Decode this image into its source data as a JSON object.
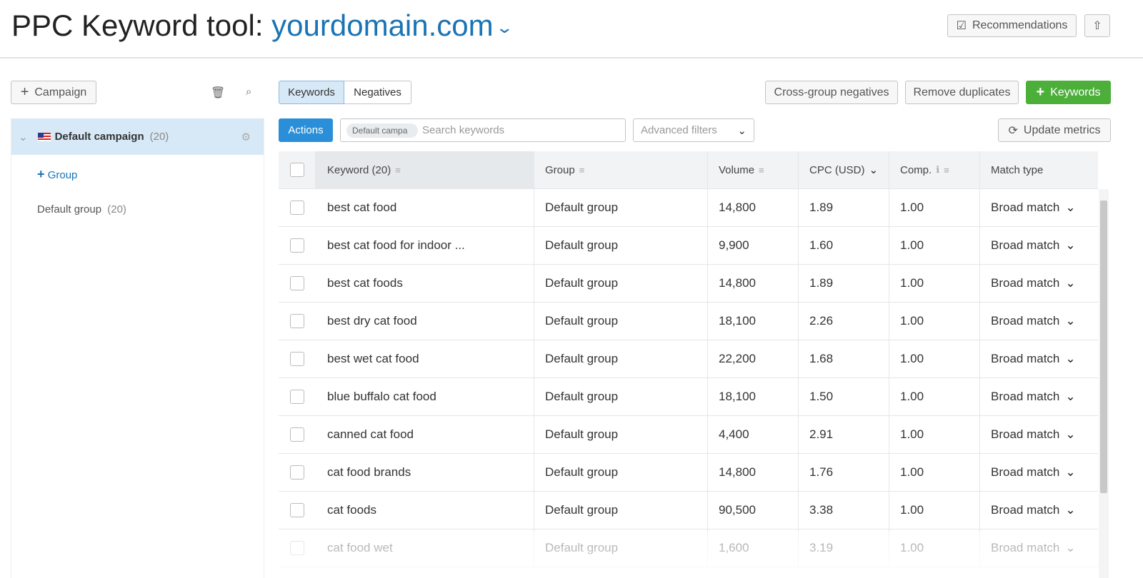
{
  "header": {
    "title_prefix": "PPC Keyword tool: ",
    "domain": "yourdomain.com",
    "recommendations": "Recommendations"
  },
  "sidebar": {
    "add_campaign": "Campaign",
    "campaign": {
      "name": "Default campaign",
      "count": "(20)"
    },
    "add_group": "Group",
    "groups": [
      {
        "name": "Default group",
        "count": "(20)"
      }
    ]
  },
  "tabs": [
    {
      "label": "Keywords",
      "active": true
    },
    {
      "label": "Negatives",
      "active": false
    }
  ],
  "toolbar": {
    "cross_group": "Cross-group negatives",
    "remove_duplicates": "Remove duplicates",
    "add_keywords": "Keywords",
    "actions": "Actions",
    "search_chip": "Default campa",
    "search_placeholder": "Search keywords",
    "advanced_filters": "Advanced filters",
    "update_metrics": "Update metrics"
  },
  "colors": {
    "accent": "#1a73b5",
    "green": "#4caf3a",
    "actions": "#2a8fd8"
  },
  "table": {
    "columns": [
      "Keyword (20)",
      "Group",
      "Volume",
      "CPC (USD)",
      "Comp.",
      "Match type"
    ],
    "rows": [
      [
        "best cat food",
        "Default group",
        "14,800",
        "1.89",
        "1.00",
        "Broad match"
      ],
      [
        "best cat food for indoor ...",
        "Default group",
        "9,900",
        "1.60",
        "1.00",
        "Broad match"
      ],
      [
        "best cat foods",
        "Default group",
        "14,800",
        "1.89",
        "1.00",
        "Broad match"
      ],
      [
        "best dry cat food",
        "Default group",
        "18,100",
        "2.26",
        "1.00",
        "Broad match"
      ],
      [
        "best wet cat food",
        "Default group",
        "22,200",
        "1.68",
        "1.00",
        "Broad match"
      ],
      [
        "blue buffalo cat food",
        "Default group",
        "18,100",
        "1.50",
        "1.00",
        "Broad match"
      ],
      [
        "canned cat food",
        "Default group",
        "4,400",
        "2.91",
        "1.00",
        "Broad match"
      ],
      [
        "cat food brands",
        "Default group",
        "14,800",
        "1.76",
        "1.00",
        "Broad match"
      ],
      [
        "cat foods",
        "Default group",
        "90,500",
        "3.38",
        "1.00",
        "Broad match"
      ],
      [
        "cat food wet",
        "Default group",
        "1,600",
        "3.19",
        "1.00",
        "Broad match"
      ]
    ]
  }
}
